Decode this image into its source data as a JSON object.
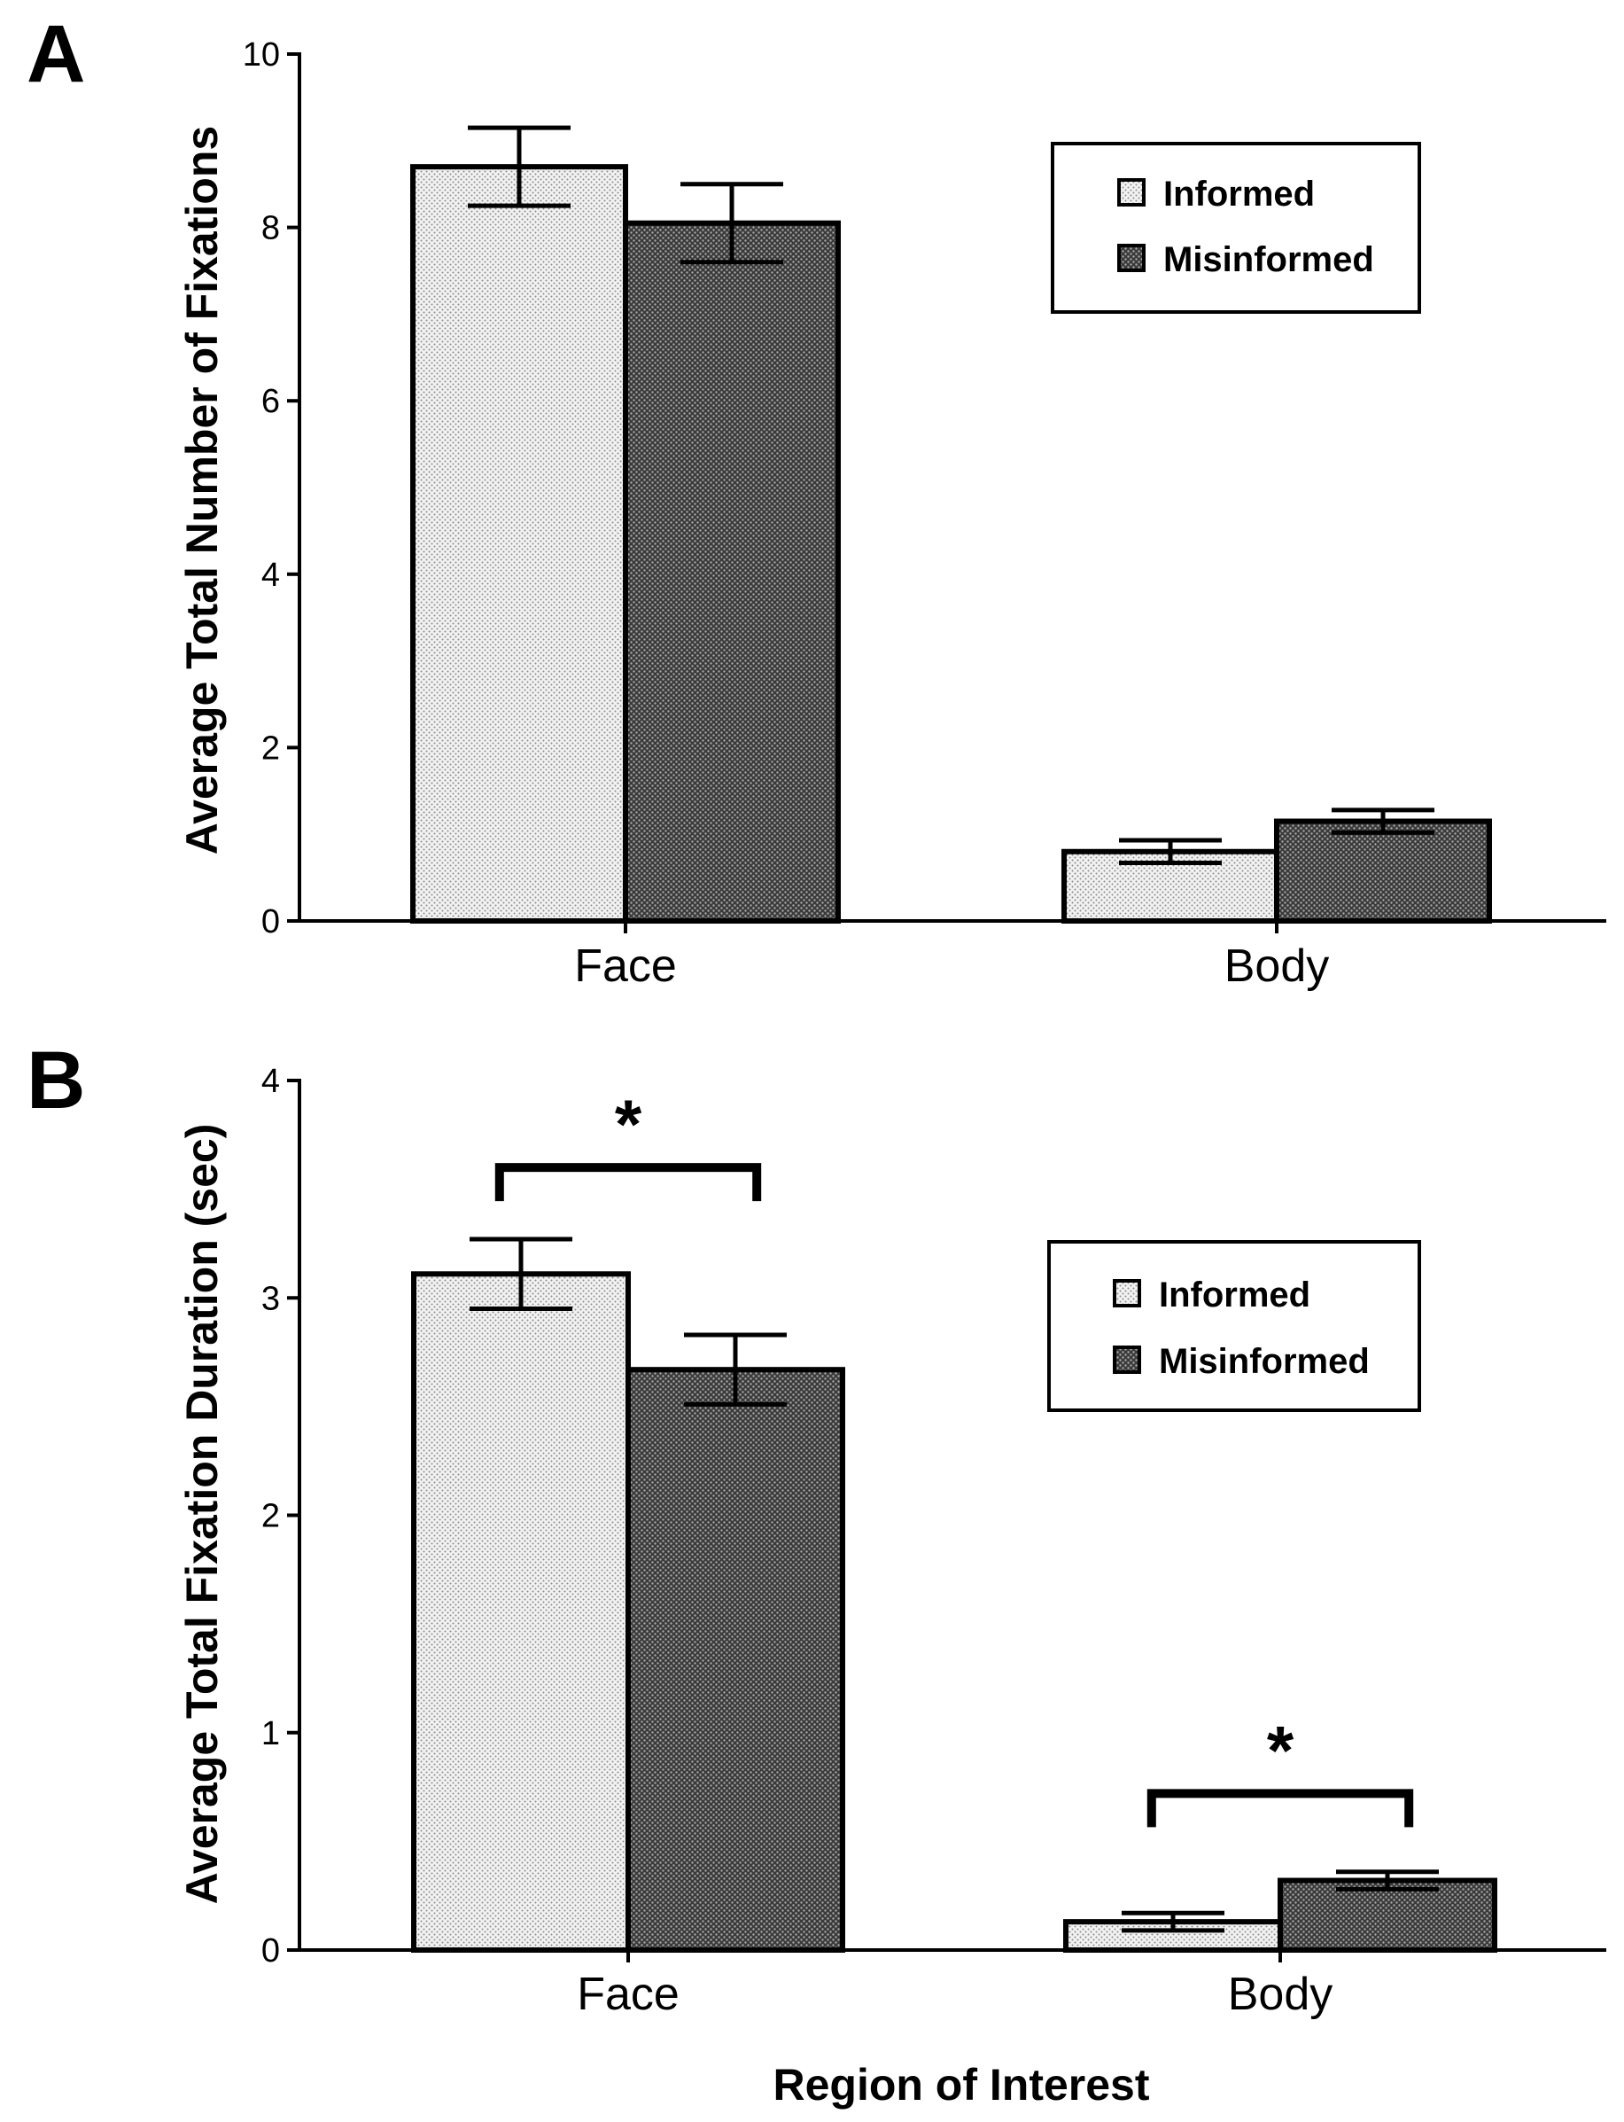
{
  "chart_data": [
    {
      "id": "A",
      "type": "bar",
      "panel_label": "A",
      "title": "",
      "xlabel": "",
      "ylabel": "Average Total Number of Fixations",
      "ylim": [
        0,
        10
      ],
      "yticks": [
        0,
        2,
        4,
        6,
        8,
        10
      ],
      "ytick_labels": [
        "0",
        "2",
        "4",
        "6",
        "8",
        "10"
      ],
      "categories": [
        "Face",
        "Body"
      ],
      "series": [
        {
          "name": "Informed",
          "values": [
            8.7,
            0.8
          ],
          "errors": [
            0.45,
            0.13
          ],
          "fill": "#e2e2e2"
        },
        {
          "name": "Misinformed",
          "values": [
            8.05,
            1.15
          ],
          "errors": [
            0.45,
            0.13
          ],
          "fill": "#5a5a5a"
        }
      ],
      "legend": {
        "position": "top-right",
        "entries": [
          "Informed",
          "Misinformed"
        ]
      },
      "significance": []
    },
    {
      "id": "B",
      "type": "bar",
      "panel_label": "B",
      "title": "",
      "xlabel": "Region of Interest",
      "ylabel": "Average Total Fixation Duration (sec)",
      "ylim": [
        0,
        4
      ],
      "yticks": [
        0,
        1,
        2,
        3,
        4
      ],
      "ytick_labels": [
        "0",
        "1",
        "2",
        "3",
        "4"
      ],
      "categories": [
        "Face",
        "Body"
      ],
      "series": [
        {
          "name": "Informed",
          "values": [
            3.11,
            0.13
          ],
          "errors": [
            0.16,
            0.04
          ],
          "fill": "#e2e2e2"
        },
        {
          "name": "Misinformed",
          "values": [
            2.67,
            0.32
          ],
          "errors": [
            0.16,
            0.04
          ],
          "fill": "#5a5a5a"
        }
      ],
      "legend": {
        "position": "right",
        "entries": [
          "Informed",
          "Misinformed"
        ]
      },
      "significance": [
        {
          "category": "Face",
          "label": "*",
          "level": 3.6
        },
        {
          "category": "Body",
          "label": "*",
          "level": 0.72
        }
      ]
    }
  ]
}
